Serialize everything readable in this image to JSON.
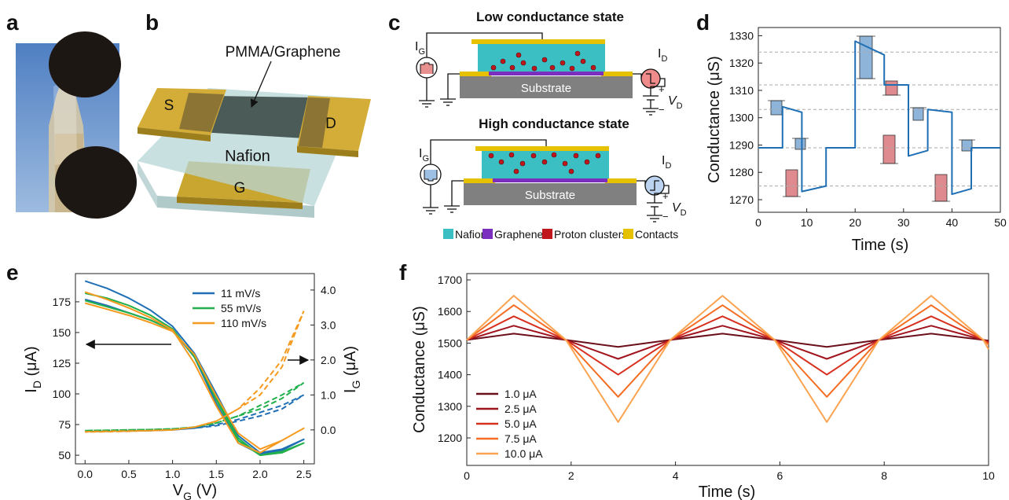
{
  "panel_labels": [
    "a",
    "b",
    "c",
    "d",
    "e",
    "f"
  ],
  "diagram_b": {
    "top_label": "PMMA/Graphene",
    "source": "S",
    "drain": "D",
    "gate": "G",
    "substrate": "Nafion"
  },
  "diagram_c": {
    "states": [
      {
        "title": "Low conductance state",
        "substrate": "Substrate"
      },
      {
        "title": "High conductance state",
        "substrate": "Substrate"
      }
    ],
    "gate_current": [
      "I",
      "G"
    ],
    "drain_current": [
      "I",
      "D"
    ],
    "drain_voltage": [
      "V",
      "D"
    ],
    "plus": "+",
    "minus": "−",
    "legend": [
      {
        "name": "Nafion",
        "color": "#3bbfc3"
      },
      {
        "name": "Graphene",
        "color": "#7b2fbe"
      },
      {
        "name": "Proton clusters",
        "color": "#c0171d"
      },
      {
        "name": "Contacts",
        "color": "#e5c100"
      }
    ]
  },
  "chart_data": [
    {
      "type": "line",
      "xlabel": "Time (s)",
      "ylabel": "Conductance (μS)",
      "x": [
        0,
        5,
        5,
        9,
        9,
        14,
        14,
        20,
        20,
        26,
        26,
        31,
        31,
        35,
        35,
        40,
        40,
        44,
        44,
        50
      ],
      "series": [
        {
          "color": "#1f6fb5",
          "values": [
            1289,
            1289,
            1304,
            1302,
            1273,
            1275,
            1289,
            1289,
            1328,
            1323,
            1312,
            1312,
            1286,
            1288,
            1303,
            1302,
            1272,
            1274,
            1289,
            1289
          ]
        }
      ],
      "xlim": [
        0,
        50
      ],
      "xticks": [
        0,
        10,
        20,
        30,
        40,
        50
      ],
      "ylim": [
        1265.4,
        1333
      ],
      "yticks": [
        1270,
        1280,
        1290,
        1300,
        1310,
        1320,
        1330
      ],
      "hlines": [
        1275,
        1289,
        1303,
        1312,
        1324
      ]
    },
    {
      "type": "line",
      "xlabel": [
        "V",
        "G",
        " (V)"
      ],
      "ylabel": [
        "I",
        "D",
        " (μA)"
      ],
      "y2label": [
        "I",
        "G",
        " (μA)"
      ],
      "x": [
        0,
        0.25,
        0.5,
        0.75,
        1,
        1.25,
        1.5,
        1.75,
        2,
        2.25,
        2.5,
        2.25,
        2,
        1.75,
        1.5,
        1.25,
        1,
        0.75,
        0.5,
        0.25,
        0
      ],
      "series": [
        {
          "name": "11 mV/s",
          "color": "#1f6fb5",
          "values": [
            177,
            172,
            166,
            160,
            152,
            130,
            92,
            60,
            51,
            54,
            63,
            55,
            52,
            66,
            100,
            133,
            155,
            168,
            178,
            186,
            192
          ],
          "y2_values": [
            -0.05,
            -0.04,
            -0.03,
            -0.02,
            0,
            0.05,
            0.12,
            0.25,
            0.4,
            0.6,
            1.0,
            0.7,
            0.5,
            0.3,
            0.15,
            0.05,
            0,
            -0.02,
            -0.03,
            -0.04,
            -0.05
          ]
        },
        {
          "name": "55 mV/s",
          "color": "#21b04b",
          "values": [
            176,
            171,
            166,
            160,
            152,
            131,
            95,
            62,
            50,
            52,
            60,
            53,
            50,
            64,
            97,
            130,
            153,
            164,
            172,
            178,
            182
          ],
          "y2_values": [
            -0.02,
            -0.01,
            0,
            0.01,
            0.03,
            0.08,
            0.2,
            0.4,
            0.6,
            0.9,
            1.35,
            1.0,
            0.7,
            0.4,
            0.2,
            0.08,
            0.03,
            0.01,
            0,
            -0.01,
            -0.02
          ]
        },
        {
          "name": "110 mV/s",
          "color": "#f59a1e",
          "values": [
            174,
            169,
            164,
            158,
            151,
            132,
            98,
            68,
            55,
            62,
            72,
            62,
            52,
            60,
            90,
            125,
            152,
            162,
            170,
            177,
            183
          ],
          "y2_values": [
            -0.05,
            -0.04,
            -0.03,
            -0.02,
            0,
            0.08,
            0.25,
            0.6,
            1.0,
            1.8,
            3.4,
            2.0,
            1.2,
            0.6,
            0.25,
            0.08,
            0,
            -0.02,
            -0.04,
            -0.05,
            -0.06
          ]
        }
      ],
      "xlim": [
        -0.11,
        2.62
      ],
      "xticks": [
        {
          "value": 0,
          "label": "0.0"
        },
        0.5,
        {
          "value": 1,
          "label": "1.0"
        },
        1.5,
        {
          "value": 2,
          "label": "2.0"
        },
        2.5
      ],
      "ylim": [
        43,
        198
      ],
      "yticks": [
        50,
        75,
        100,
        125,
        150,
        175
      ],
      "y2lim": [
        -0.97,
        4.47
      ],
      "y2ticks": [
        {
          "value": 0,
          "label": "0.0"
        },
        {
          "value": 1,
          "label": "1.0"
        },
        {
          "value": 2,
          "label": "2.0"
        },
        {
          "value": 3,
          "label": "3.0"
        },
        {
          "value": 4,
          "label": "4.0"
        }
      ],
      "legend": "upper right"
    },
    {
      "type": "line",
      "xlabel": "Time (s)",
      "ylabel": "Conductance (μS)",
      "x": [
        0,
        0.9,
        1.9,
        2.9,
        3.9,
        4.9,
        5.9,
        6.9,
        7.9,
        8.9,
        9.9,
        10
      ],
      "series": [
        {
          "name": "1.0 μA",
          "color": "#6b0f1a",
          "values": [
            1510,
            1530,
            1510,
            1488,
            1510,
            1530,
            1510,
            1488,
            1510,
            1530,
            1510,
            1508
          ]
        },
        {
          "name": "2.5 μA",
          "color": "#a0141e",
          "values": [
            1510,
            1555,
            1510,
            1450,
            1510,
            1555,
            1510,
            1450,
            1510,
            1555,
            1510,
            1505
          ]
        },
        {
          "name": "5.0 μA",
          "color": "#d7301f",
          "values": [
            1510,
            1585,
            1510,
            1400,
            1510,
            1585,
            1510,
            1400,
            1510,
            1585,
            1510,
            1500
          ]
        },
        {
          "name": "7.5 μA",
          "color": "#f46d22",
          "values": [
            1510,
            1620,
            1510,
            1330,
            1510,
            1620,
            1510,
            1330,
            1510,
            1620,
            1510,
            1495
          ]
        },
        {
          "name": "10.0 μA",
          "color": "#fba350",
          "values": [
            1510,
            1650,
            1510,
            1250,
            1510,
            1650,
            1510,
            1250,
            1510,
            1650,
            1510,
            1480
          ]
        }
      ],
      "xlim": [
        0,
        10
      ],
      "xticks": [
        0,
        2,
        4,
        6,
        8,
        10
      ],
      "ylim": [
        1113,
        1720
      ],
      "yticks": [
        1200,
        1300,
        1400,
        1500,
        1600,
        1700
      ],
      "legend": "lower left"
    }
  ]
}
